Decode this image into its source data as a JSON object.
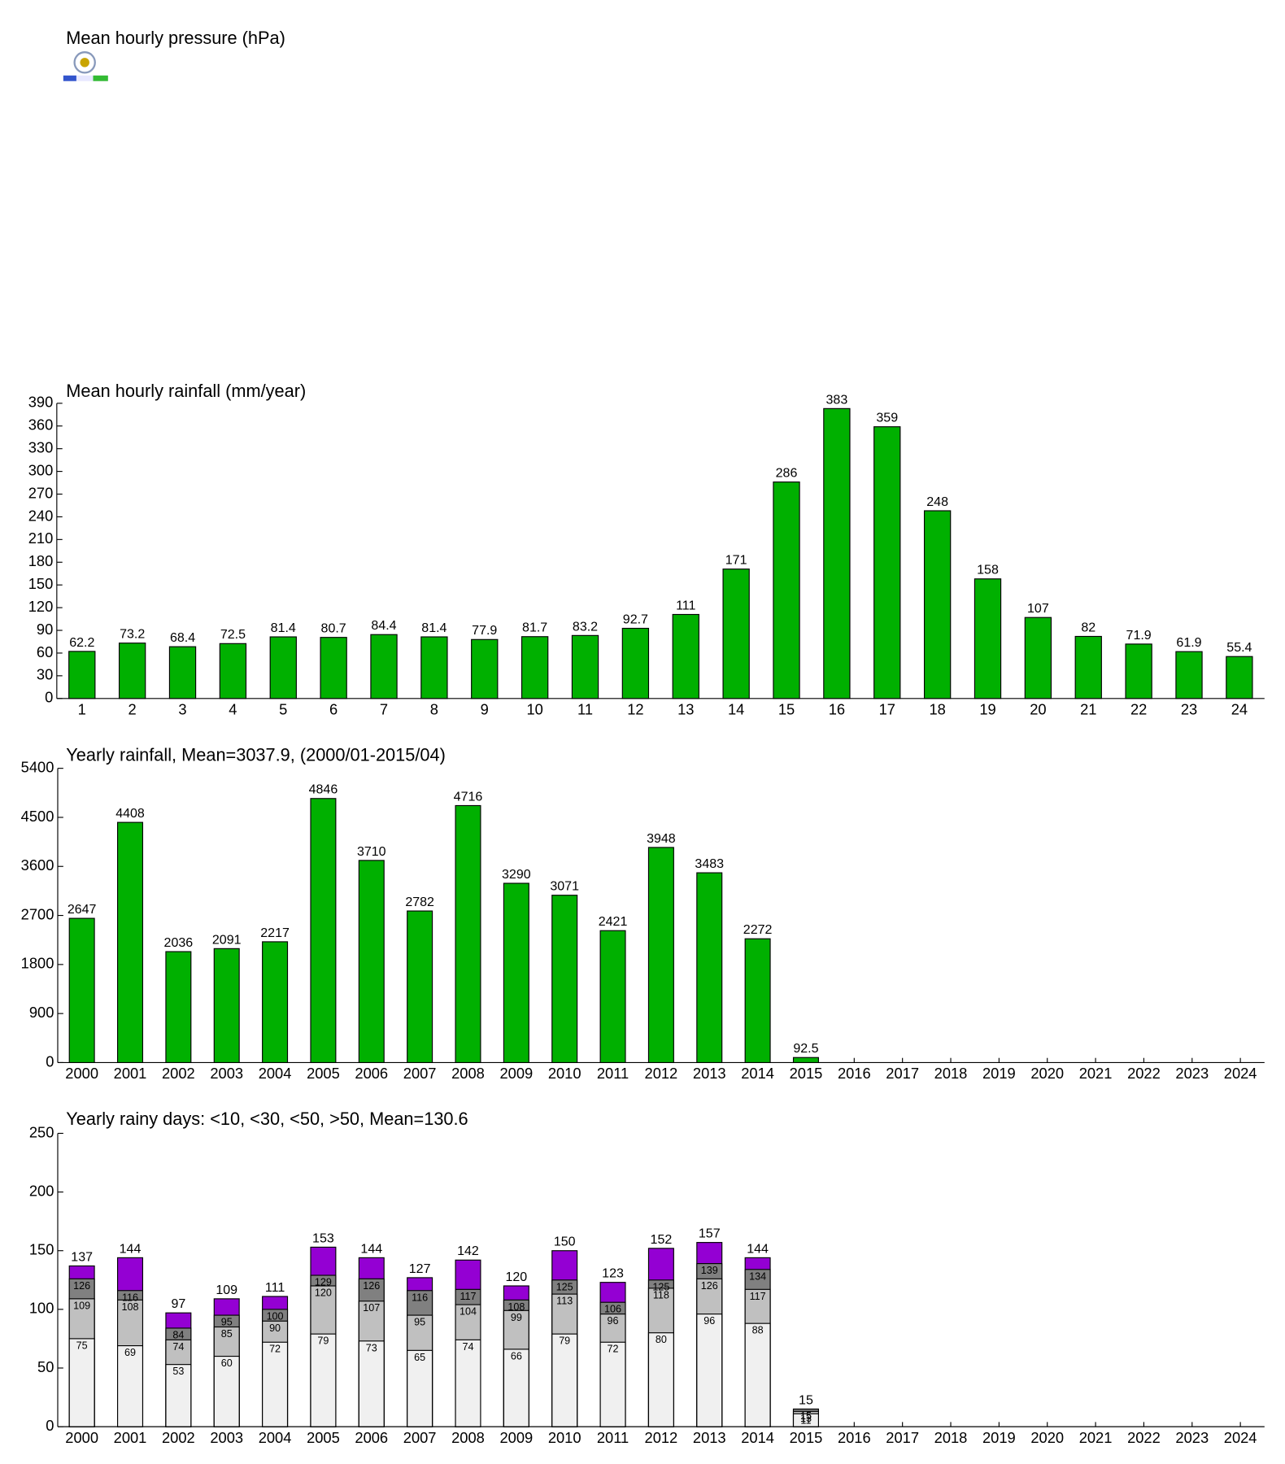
{
  "chart_data": [
    {
      "type": "line",
      "title": "Mean hourly pressure (hPa)"
    },
    {
      "type": "bar",
      "title": "Mean hourly rainfall (mm/year)",
      "categories": [
        "1",
        "2",
        "3",
        "4",
        "5",
        "6",
        "7",
        "8",
        "9",
        "10",
        "11",
        "12",
        "13",
        "14",
        "15",
        "16",
        "17",
        "18",
        "19",
        "20",
        "21",
        "22",
        "23",
        "24"
      ],
      "values": [
        62.2,
        73.2,
        68.4,
        72.5,
        81.4,
        80.7,
        84.4,
        81.4,
        77.9,
        81.7,
        83.2,
        92.7,
        111,
        171,
        286,
        383,
        359,
        248,
        158,
        107,
        82,
        71.9,
        61.9,
        55.4
      ],
      "color": "#00b000",
      "ylim": [
        0,
        390
      ],
      "yticks": [
        0,
        30,
        60,
        90,
        120,
        150,
        180,
        210,
        240,
        270,
        300,
        330,
        360,
        390
      ]
    },
    {
      "type": "bar",
      "title": "Yearly rainfall, Mean=3037.9, (2000/01-2015/04)",
      "categories": [
        "2000",
        "2001",
        "2002",
        "2003",
        "2004",
        "2005",
        "2006",
        "2007",
        "2008",
        "2009",
        "2010",
        "2011",
        "2012",
        "2013",
        "2014",
        "2015",
        "2016",
        "2017",
        "2018",
        "2019",
        "2020",
        "2021",
        "2022",
        "2023",
        "2024"
      ],
      "values": [
        2647,
        4408,
        2036,
        2091,
        2217,
        4846,
        3710,
        2782,
        4716,
        3290,
        3071,
        2421,
        3948,
        3483,
        2272,
        92.5,
        null,
        null,
        null,
        null,
        null,
        null,
        null,
        null,
        null
      ],
      "color": "#00b000",
      "ylim": [
        0,
        5400
      ],
      "yticks": [
        0,
        900,
        1800,
        2700,
        3600,
        4500,
        5400
      ]
    },
    {
      "type": "overlapbar",
      "title": "Yearly rainy days: <10, <30, <50, >50, Mean=130.6",
      "categories": [
        "2000",
        "2001",
        "2002",
        "2003",
        "2004",
        "2005",
        "2006",
        "2007",
        "2008",
        "2009",
        "2010",
        "2011",
        "2012",
        "2013",
        "2014",
        "2015",
        "2016",
        "2017",
        "2018",
        "2019",
        "2020",
        "2021",
        "2022",
        "2023",
        "2024"
      ],
      "series": [
        {
          "color": "#f0f0f0",
          "values": [
            75,
            69,
            53,
            60,
            72,
            79,
            73,
            65,
            74,
            66,
            79,
            72,
            80,
            96,
            88,
            11,
            null,
            null,
            null,
            null,
            null,
            null,
            null,
            null,
            null
          ]
        },
        {
          "color": "#c0c0c0",
          "values": [
            109,
            108,
            74,
            85,
            90,
            120,
            107,
            95,
            104,
            99,
            113,
            96,
            118,
            126,
            117,
            13,
            null,
            null,
            null,
            null,
            null,
            null,
            null,
            null,
            null
          ]
        },
        {
          "color": "#808080",
          "values": [
            126,
            116,
            84,
            95,
            100,
            129,
            126,
            116,
            117,
            108,
            125,
            106,
            125,
            139,
            134,
            15,
            null,
            null,
            null,
            null,
            null,
            null,
            null,
            null,
            null
          ]
        },
        {
          "color": "#9400d3",
          "values": [
            137,
            144,
            97,
            109,
            111,
            153,
            144,
            127,
            142,
            120,
            150,
            123,
            152,
            157,
            144,
            15,
            null,
            null,
            null,
            null,
            null,
            null,
            null,
            null,
            null
          ]
        }
      ],
      "ylim": [
        0,
        250
      ],
      "yticks": [
        0,
        50,
        100,
        150,
        200,
        250
      ]
    }
  ]
}
